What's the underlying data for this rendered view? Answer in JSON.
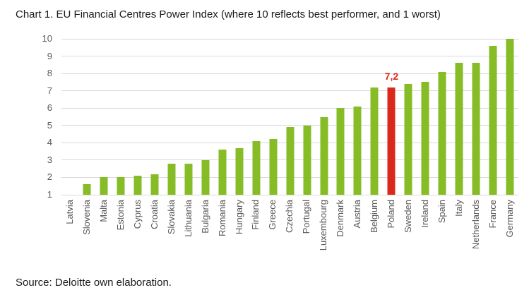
{
  "title": "Chart 1. EU Financial Centres Power Index (where 10 reflects best performer, and 1 worst)",
  "source": "Source: Deloitte own elaboration.",
  "colors": {
    "bar": "#86BC25",
    "highlight": "#DA291C",
    "gridline": "#D9D9D9",
    "axis_text": "#595959",
    "title_text": "#1A1A1A"
  },
  "chart_data": {
    "type": "bar",
    "title": "Chart 1. EU Financial Centres Power Index (where 10 reflects best performer, and 1 worst)",
    "xlabel": "",
    "ylabel": "",
    "ylim": [
      1,
      10
    ],
    "yticks": [
      1,
      2,
      3,
      4,
      5,
      6,
      7,
      8,
      9,
      10
    ],
    "grid": true,
    "legend": false,
    "categories": [
      "Latvia",
      "Slovenia",
      "Malta",
      "Estonia",
      "Cyprus",
      "Croatia",
      "Slovakia",
      "Lithuania",
      "Bulgaria",
      "Romania",
      "Hungary",
      "Finland",
      "Greece",
      "Czechia",
      "Portugal",
      "Luxembourg",
      "Denmark",
      "Austria",
      "Belgium",
      "Poland",
      "Sweden",
      "Ireland",
      "Spain",
      "Italy",
      "Netherlands",
      "France",
      "Germany"
    ],
    "values": [
      1.0,
      1.6,
      2.0,
      2.0,
      2.1,
      2.2,
      2.8,
      2.8,
      3.0,
      3.6,
      3.7,
      4.1,
      4.2,
      4.9,
      5.0,
      5.5,
      6.0,
      6.1,
      7.2,
      7.2,
      7.4,
      7.5,
      8.1,
      8.6,
      8.6,
      9.6,
      10.0
    ],
    "highlight_category": "Poland",
    "highlight_value_label": "7,2",
    "bar_color": "#86BC25",
    "highlight_color": "#DA291C"
  }
}
